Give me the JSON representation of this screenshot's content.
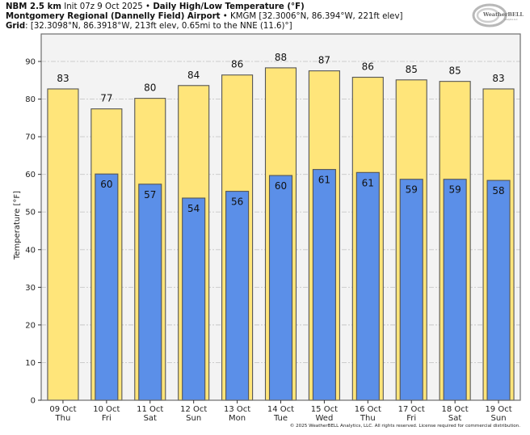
{
  "header": {
    "model": "NBM 2.5 km",
    "init": "Init 07z 9 Oct 2025",
    "sep": "•",
    "product": "Daily High/Low Temperature (°F)",
    "station_name": "Montgomery Regional (Dannelly Field) Airport",
    "station_info": "KMGM [32.3006°N, 86.394°W, 221ft elev]",
    "grid_label": "Grid",
    "grid_info": ": [32.3098°N, 86.3918°W, 213ft elev, 0.65mi to the NNE (11.6)°]"
  },
  "logo": {
    "text": "WeatherBELL",
    "sub": "Analytics LLC"
  },
  "copyright": "© 2025 WeatherBELL Analytics, LLC. All rights reserved. License required for commercial distribution.",
  "colors": {
    "high": "#FFE57A",
    "low": "#5B8FE8",
    "plot_bg": "#F3F3F3",
    "outline": "#555555",
    "grid": "#C8C8C8"
  },
  "chart_data": {
    "type": "bar",
    "title": "Daily High/Low Temperature (°F)",
    "xlabel": "",
    "ylabel": "Temperature [°F]",
    "ylim": [
      0,
      97.3
    ],
    "yticks": [
      0,
      10,
      20,
      30,
      40,
      50,
      60,
      70,
      80,
      90
    ],
    "grid": true,
    "categories": [
      {
        "date": "09 Oct",
        "day": "Thu"
      },
      {
        "date": "10 Oct",
        "day": "Fri"
      },
      {
        "date": "11 Oct",
        "day": "Sat"
      },
      {
        "date": "12 Oct",
        "day": "Sun"
      },
      {
        "date": "13 Oct",
        "day": "Mon"
      },
      {
        "date": "14 Oct",
        "day": "Tue"
      },
      {
        "date": "15 Oct",
        "day": "Wed"
      },
      {
        "date": "16 Oct",
        "day": "Thu"
      },
      {
        "date": "17 Oct",
        "day": "Fri"
      },
      {
        "date": "18 Oct",
        "day": "Sat"
      },
      {
        "date": "19 Oct",
        "day": "Sun"
      }
    ],
    "series": [
      {
        "name": "High",
        "values": [
          82.7,
          77.4,
          80.2,
          83.6,
          86.4,
          88.3,
          87.5,
          85.8,
          85.1,
          84.7,
          82.7
        ],
        "labels": [
          "83",
          "77",
          "80",
          "84",
          "86",
          "88",
          "87",
          "86",
          "85",
          "85",
          "83"
        ]
      },
      {
        "name": "Low",
        "values": [
          null,
          60.1,
          57.4,
          53.7,
          55.5,
          59.7,
          61.3,
          60.5,
          58.7,
          58.7,
          58.4
        ],
        "labels": [
          null,
          "60",
          "57",
          "54",
          "56",
          "60",
          "61",
          "61",
          "59",
          "59",
          "58"
        ]
      }
    ]
  }
}
